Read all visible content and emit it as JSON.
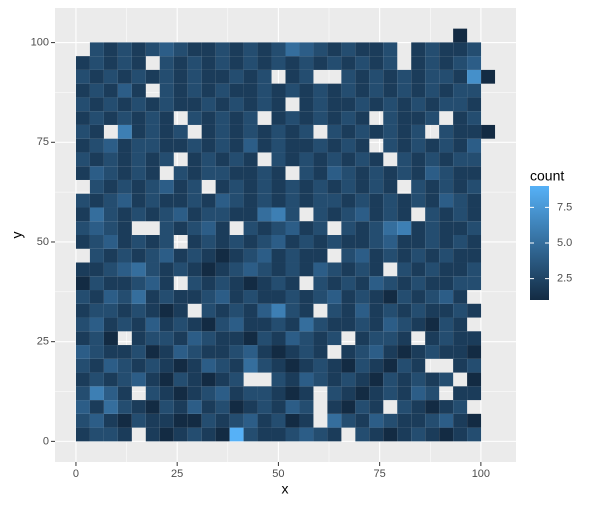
{
  "chart_data": {
    "type": "heatmap",
    "xlabel": "x",
    "ylabel": "y",
    "legend_title": "count",
    "xbins": [
      0,
      3.45,
      6.9,
      10.35,
      13.8,
      17.25,
      20.7,
      24.15,
      27.6,
      31.05,
      34.5,
      37.95,
      41.4,
      44.85,
      48.3,
      51.75,
      55.2,
      58.65,
      62.1,
      65.55,
      69,
      72.45,
      75.9,
      79.35,
      82.8,
      86.25,
      89.7,
      93.15,
      96.6,
      100.05,
      103.5
    ],
    "ybins": [
      0,
      3.45,
      6.9,
      10.35,
      13.8,
      17.25,
      20.7,
      24.15,
      27.6,
      31.05,
      34.5,
      37.95,
      41.4,
      44.85,
      48.3,
      51.75,
      55.2,
      58.65,
      62.1,
      65.55,
      69,
      72.45,
      75.9,
      79.35,
      82.8,
      86.25,
      89.7,
      93.15,
      96.6,
      100.05,
      103.5
    ],
    "values": [
      [
        2,
        3,
        3,
        2,
        null,
        2,
        1,
        2,
        3,
        2,
        1,
        9,
        3,
        2,
        2,
        3,
        4,
        3,
        2,
        null,
        3,
        2,
        1,
        2,
        3,
        2,
        1,
        2,
        3,
        null
      ],
      [
        3,
        4,
        2,
        1,
        3,
        2,
        2,
        1,
        1,
        3,
        2,
        3,
        4,
        2,
        3,
        1,
        2,
        null,
        5,
        3,
        2,
        4,
        3,
        2,
        2,
        3,
        4,
        2,
        1,
        null
      ],
      [
        4,
        2,
        5,
        3,
        2,
        1,
        3,
        2,
        4,
        2,
        3,
        1,
        2,
        3,
        2,
        4,
        3,
        null,
        2,
        1,
        3,
        2,
        null,
        3,
        2,
        1,
        2,
        3,
        null,
        null
      ],
      [
        3,
        6,
        4,
        2,
        null,
        3,
        2,
        1,
        2,
        3,
        4,
        2,
        3,
        3,
        2,
        1,
        2,
        null,
        3,
        2,
        1,
        2,
        3,
        2,
        4,
        3,
        null,
        2,
        2,
        null
      ],
      [
        2,
        3,
        2,
        3,
        4,
        2,
        1,
        3,
        2,
        1,
        2,
        3,
        null,
        null,
        3,
        2,
        4,
        3,
        2,
        3,
        2,
        1,
        3,
        2,
        3,
        2,
        3,
        null,
        1,
        null
      ],
      [
        3,
        2,
        4,
        3,
        2,
        3,
        2,
        1,
        2,
        4,
        3,
        2,
        5,
        3,
        2,
        1,
        2,
        3,
        2,
        1,
        3,
        2,
        1,
        3,
        2,
        null,
        null,
        2,
        3,
        null
      ],
      [
        4,
        3,
        2,
        2,
        3,
        1,
        2,
        4,
        3,
        2,
        2,
        3,
        4,
        2,
        1,
        2,
        3,
        2,
        null,
        2,
        3,
        4,
        2,
        1,
        2,
        3,
        2,
        2,
        1,
        null
      ],
      [
        2,
        3,
        1,
        null,
        2,
        3,
        3,
        2,
        4,
        3,
        2,
        2,
        1,
        3,
        2,
        4,
        3,
        2,
        3,
        null,
        2,
        3,
        3,
        2,
        null,
        2,
        3,
        2,
        2,
        null
      ],
      [
        3,
        4,
        2,
        3,
        2,
        4,
        2,
        3,
        2,
        1,
        3,
        4,
        2,
        2,
        3,
        2,
        5,
        3,
        2,
        2,
        3,
        2,
        4,
        3,
        2,
        1,
        3,
        2,
        null,
        null
      ],
      [
        2,
        3,
        3,
        2,
        3,
        2,
        1,
        2,
        null,
        3,
        2,
        3,
        2,
        4,
        6,
        3,
        2,
        null,
        3,
        2,
        4,
        2,
        3,
        2,
        3,
        2,
        2,
        3,
        2,
        null
      ],
      [
        3,
        2,
        4,
        3,
        5,
        2,
        3,
        2,
        2,
        3,
        4,
        2,
        3,
        2,
        2,
        3,
        2,
        3,
        4,
        2,
        3,
        2,
        1,
        3,
        2,
        3,
        4,
        2,
        null,
        null
      ],
      [
        1,
        3,
        2,
        2,
        3,
        4,
        2,
        null,
        3,
        2,
        3,
        2,
        1,
        2,
        3,
        2,
        null,
        3,
        2,
        3,
        2,
        4,
        3,
        2,
        3,
        2,
        2,
        3,
        3,
        null
      ],
      [
        2,
        2,
        3,
        4,
        5,
        3,
        2,
        3,
        2,
        1,
        2,
        3,
        4,
        3,
        2,
        3,
        2,
        4,
        3,
        2,
        3,
        2,
        null,
        3,
        2,
        3,
        2,
        2,
        3,
        null
      ],
      [
        null,
        3,
        2,
        3,
        2,
        3,
        4,
        2,
        3,
        2,
        1,
        2,
        3,
        4,
        2,
        3,
        2,
        2,
        null,
        3,
        4,
        2,
        3,
        2,
        3,
        2,
        3,
        2,
        2,
        null
      ],
      [
        2,
        3,
        4,
        2,
        3,
        2,
        3,
        null,
        2,
        3,
        2,
        3,
        2,
        3,
        4,
        2,
        3,
        2,
        3,
        2,
        2,
        3,
        4,
        2,
        2,
        3,
        2,
        3,
        2,
        null
      ],
      [
        3,
        4,
        3,
        2,
        null,
        null,
        3,
        2,
        3,
        4,
        2,
        null,
        3,
        2,
        3,
        4,
        2,
        3,
        null,
        3,
        2,
        3,
        5,
        6,
        2,
        3,
        2,
        2,
        3,
        null
      ],
      [
        2,
        5,
        3,
        2,
        3,
        2,
        3,
        4,
        2,
        3,
        3,
        2,
        2,
        5,
        6,
        3,
        null,
        3,
        2,
        3,
        4,
        2,
        3,
        2,
        null,
        3,
        2,
        3,
        2,
        null
      ],
      [
        3,
        2,
        3,
        4,
        2,
        3,
        2,
        2,
        3,
        2,
        4,
        3,
        2,
        3,
        2,
        3,
        2,
        3,
        3,
        2,
        3,
        2,
        3,
        2,
        3,
        2,
        4,
        3,
        2,
        null
      ],
      [
        null,
        3,
        2,
        3,
        2,
        3,
        4,
        2,
        3,
        null,
        2,
        3,
        2,
        3,
        2,
        3,
        2,
        3,
        2,
        3,
        2,
        3,
        2,
        null,
        3,
        2,
        3,
        2,
        3,
        null
      ],
      [
        2,
        4,
        3,
        2,
        3,
        2,
        null,
        3,
        2,
        3,
        3,
        2,
        2,
        3,
        2,
        null,
        3,
        2,
        4,
        3,
        2,
        3,
        2,
        3,
        2,
        4,
        3,
        2,
        2,
        null
      ],
      [
        3,
        2,
        3,
        2,
        3,
        2,
        3,
        null,
        2,
        3,
        2,
        3,
        2,
        null,
        3,
        2,
        3,
        2,
        3,
        2,
        3,
        2,
        null,
        3,
        2,
        3,
        2,
        3,
        3,
        null
      ],
      [
        2,
        3,
        4,
        2,
        3,
        3,
        2,
        2,
        3,
        2,
        3,
        2,
        4,
        2,
        3,
        2,
        2,
        3,
        2,
        3,
        2,
        null,
        3,
        2,
        3,
        2,
        3,
        2,
        4,
        null
      ],
      [
        3,
        2,
        null,
        6,
        2,
        3,
        2,
        3,
        null,
        2,
        3,
        2,
        3,
        2,
        3,
        2,
        3,
        null,
        3,
        2,
        3,
        2,
        3,
        2,
        3,
        null,
        3,
        2,
        2,
        1
      ],
      [
        2,
        3,
        2,
        3,
        2,
        3,
        2,
        null,
        3,
        2,
        3,
        2,
        3,
        null,
        2,
        3,
        2,
        3,
        2,
        3,
        2,
        null,
        3,
        2,
        2,
        3,
        null,
        2,
        3,
        null
      ],
      [
        3,
        2,
        3,
        2,
        3,
        2,
        3,
        2,
        2,
        3,
        2,
        3,
        2,
        3,
        2,
        null,
        2,
        3,
        2,
        2,
        3,
        2,
        3,
        2,
        3,
        2,
        3,
        3,
        2,
        null
      ],
      [
        2,
        3,
        2,
        4,
        2,
        null,
        3,
        2,
        3,
        2,
        3,
        2,
        2,
        3,
        2,
        3,
        2,
        3,
        2,
        3,
        2,
        3,
        2,
        3,
        2,
        3,
        2,
        3,
        3,
        null
      ],
      [
        3,
        2,
        3,
        2,
        3,
        2,
        3,
        2,
        3,
        2,
        2,
        3,
        2,
        3,
        null,
        2,
        3,
        null,
        null,
        3,
        2,
        3,
        2,
        3,
        2,
        3,
        3,
        2,
        7,
        1
      ],
      [
        2,
        3,
        2,
        3,
        2,
        null,
        3,
        2,
        3,
        2,
        3,
        2,
        3,
        2,
        3,
        2,
        3,
        2,
        3,
        2,
        3,
        2,
        3,
        null,
        2,
        3,
        2,
        3,
        4,
        null
      ],
      [
        null,
        3,
        2,
        3,
        2,
        3,
        4,
        3,
        2,
        2,
        3,
        2,
        3,
        2,
        3,
        5,
        4,
        3,
        2,
        3,
        2,
        2,
        3,
        null,
        2,
        3,
        2,
        2,
        3,
        null
      ],
      [
        null,
        null,
        null,
        null,
        null,
        null,
        null,
        null,
        null,
        null,
        null,
        null,
        null,
        null,
        null,
        null,
        null,
        null,
        null,
        null,
        null,
        null,
        null,
        null,
        null,
        null,
        null,
        1,
        null,
        null
      ]
    ],
    "xlim": [
      -5.175,
      108.675
    ],
    "ylim": [
      -5.175,
      108.675
    ],
    "xticks": [
      0,
      25,
      50,
      75,
      100
    ],
    "yticks": [
      0,
      25,
      50,
      75,
      100
    ],
    "xminor": [
      12.5,
      37.5,
      62.5,
      87.5
    ],
    "yminor": [
      12.5,
      37.5,
      62.5,
      87.5
    ],
    "grid": true,
    "color_low": "#132B43",
    "color_high": "#56B1F7",
    "color_limits": [
      1,
      9
    ],
    "color_ticks": [
      2.5,
      {
        "value": 5,
        "label": "5.0"
      },
      7.5
    ],
    "legend_position": "right"
  }
}
